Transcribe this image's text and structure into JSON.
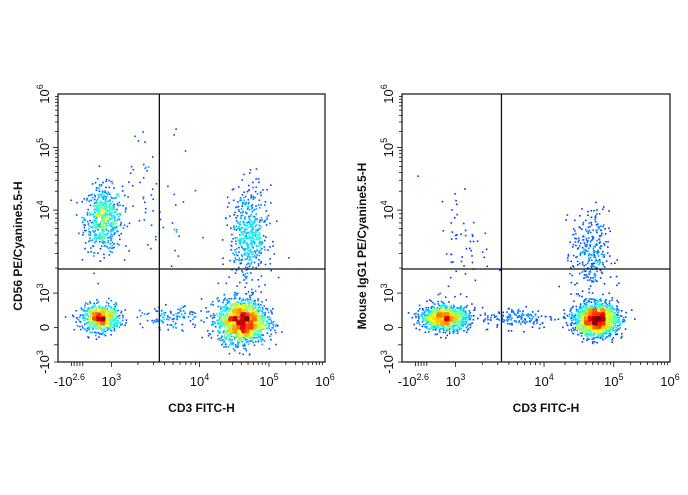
{
  "chart_data": [
    {
      "type": "scatter",
      "subtype": "flow-cytometry-density-dot-plot",
      "xlabel": "CD3 FITC-H",
      "ylabel": "CD56 PE/Cyanine5.5-H",
      "x_scale": "biexponential",
      "y_scale": "biexponential",
      "x_ticks": [
        {
          "base": "-10",
          "exp": "2.6",
          "value": -398
        },
        {
          "base": "10",
          "exp": "3",
          "value": 1000
        },
        {
          "base": "10",
          "exp": "4",
          "value": 10000
        },
        {
          "base": "10",
          "exp": "5",
          "value": 100000
        },
        {
          "base": "10",
          "exp": "6",
          "value": 1000000
        }
      ],
      "y_ticks": [
        {
          "base": "-10",
          "exp": "3",
          "value": -1000
        },
        {
          "base": "0",
          "exp": "",
          "value": 0
        },
        {
          "base": "10",
          "exp": "3",
          "value": 1000
        },
        {
          "base": "10",
          "exp": "4",
          "value": 10000
        },
        {
          "base": "10",
          "exp": "5",
          "value": 100000
        },
        {
          "base": "10",
          "exp": "6",
          "value": 1000000
        }
      ],
      "xlim": [
        -398,
        1000000
      ],
      "ylim": [
        -1000,
        1000000
      ],
      "quadrant_gate": {
        "x": 3500,
        "y": 1950
      },
      "populations": [
        {
          "x": 700,
          "y": 8000,
          "count": 600
        },
        {
          "x": 600,
          "y": 300,
          "count": 700
        },
        {
          "x": 40000,
          "y": 200,
          "count": 1700
        },
        {
          "x": 50000,
          "y": 5000,
          "count": 500
        },
        {
          "x": 5000,
          "y": 300,
          "count": 120
        },
        {
          "x": 3000,
          "y": 20000,
          "count": 60
        }
      ],
      "colormap": "jet (blue low density → red high density)"
    },
    {
      "type": "scatter",
      "subtype": "flow-cytometry-density-dot-plot",
      "xlabel": "CD3 FITC-H",
      "ylabel": "Mouse IgG1 PE/Cyanine5.5-H",
      "x_scale": "biexponential",
      "y_scale": "biexponential",
      "x_ticks": [
        {
          "base": "-10",
          "exp": "2.6",
          "value": -398
        },
        {
          "base": "10",
          "exp": "3",
          "value": 1000
        },
        {
          "base": "10",
          "exp": "4",
          "value": 10000
        },
        {
          "base": "10",
          "exp": "5",
          "value": 100000
        },
        {
          "base": "10",
          "exp": "6",
          "value": 1000000
        }
      ],
      "y_ticks": [
        {
          "base": "-10",
          "exp": "3",
          "value": -1000
        },
        {
          "base": "0",
          "exp": "",
          "value": 0
        },
        {
          "base": "10",
          "exp": "3",
          "value": 1000
        },
        {
          "base": "10",
          "exp": "4",
          "value": 10000
        },
        {
          "base": "10",
          "exp": "5",
          "value": 100000
        },
        {
          "base": "10",
          "exp": "6",
          "value": 1000000
        }
      ],
      "xlim": [
        -398,
        1000000
      ],
      "ylim": [
        -1000,
        1000000
      ],
      "quadrant_gate": {
        "x": 3300,
        "y": 1950
      },
      "populations": [
        {
          "x": 600,
          "y": 300,
          "count": 1100
        },
        {
          "x": 55000,
          "y": 250,
          "count": 1800
        },
        {
          "x": 45000,
          "y": 3000,
          "count": 300
        },
        {
          "x": 5000,
          "y": 300,
          "count": 150
        },
        {
          "x": 1200,
          "y": 4000,
          "count": 60
        }
      ],
      "colormap": "jet (blue low density → red high density)"
    }
  ]
}
